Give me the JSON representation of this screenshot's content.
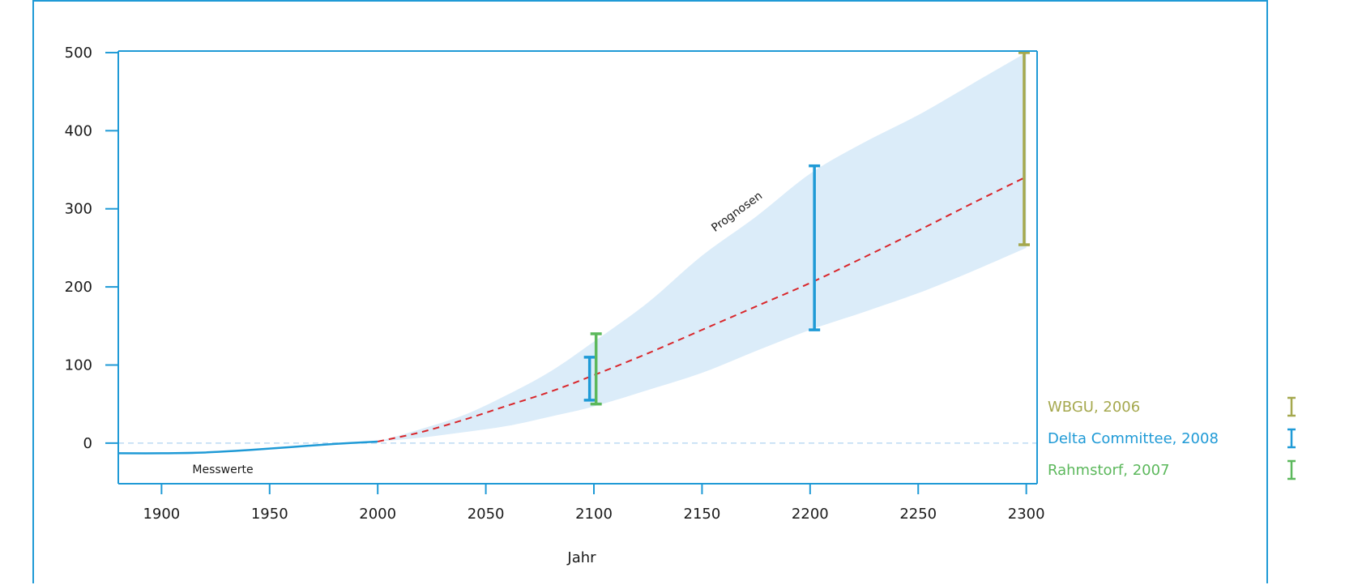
{
  "chart_data": {
    "type": "line",
    "title": "",
    "xlabel": "Jahr",
    "ylabel": "",
    "xlim": [
      1880,
      2305
    ],
    "ylim": [
      -52,
      502
    ],
    "x_ticks": [
      1900,
      1950,
      2000,
      2050,
      2100,
      2150,
      2200,
      2250,
      2300
    ],
    "y_ticks": [
      0,
      100,
      200,
      300,
      400,
      500
    ],
    "grid": false,
    "zero_line": true,
    "colors": {
      "axis": "#1f9ad6",
      "measured": "#1f9ad6",
      "projection": "#d9262b",
      "band": "#dbecf9",
      "zero_line": "#bcd9f2"
    },
    "measured": {
      "label": "Messwerte",
      "x": [
        1880,
        1900,
        1920,
        1940,
        1960,
        1980,
        2000
      ],
      "y": [
        -13,
        -13,
        -12,
        -9,
        -5,
        -1,
        2
      ]
    },
    "projection": {
      "x": [
        2000,
        2020,
        2040,
        2060,
        2080,
        2100,
        2125,
        2150,
        2175,
        2200,
        2225,
        2250,
        2275,
        2300
      ],
      "y": [
        2,
        14,
        30,
        48,
        66,
        87,
        115,
        145,
        175,
        205,
        238,
        272,
        307,
        341
      ]
    },
    "band": {
      "label": "Prognosen",
      "x": [
        2000,
        2020,
        2040,
        2060,
        2080,
        2100,
        2125,
        2150,
        2175,
        2200,
        2225,
        2250,
        2275,
        2300
      ],
      "lower": [
        2,
        7,
        14,
        22,
        34,
        47,
        68,
        90,
        118,
        145,
        168,
        192,
        220,
        250
      ],
      "upper": [
        2,
        18,
        36,
        62,
        92,
        130,
        180,
        240,
        290,
        345,
        385,
        420,
        460,
        500
      ]
    },
    "error_bars": [
      {
        "name": "WBGU, 2006",
        "color": "#a5a84e",
        "x": 2299,
        "low": 254,
        "high": 500
      },
      {
        "name": "Delta Committee, 2008",
        "color": "#1f9ad6",
        "x": 2098,
        "low": 55,
        "high": 110
      },
      {
        "name": "Delta Committee, 2008",
        "color": "#1f9ad6",
        "x": 2202,
        "low": 145,
        "high": 355
      },
      {
        "name": "Rahmstorf, 2007",
        "color": "#5cb85c",
        "x": 2101,
        "low": 50,
        "high": 140
      }
    ],
    "legend": {
      "placement": "right",
      "items": [
        {
          "label": "WBGU, 2006",
          "color": "#a5a84e"
        },
        {
          "label": "Delta Committee, 2008",
          "color": "#1f9ad6"
        },
        {
          "label": "Rahmstorf, 2007",
          "color": "#5cb85c"
        }
      ]
    }
  }
}
